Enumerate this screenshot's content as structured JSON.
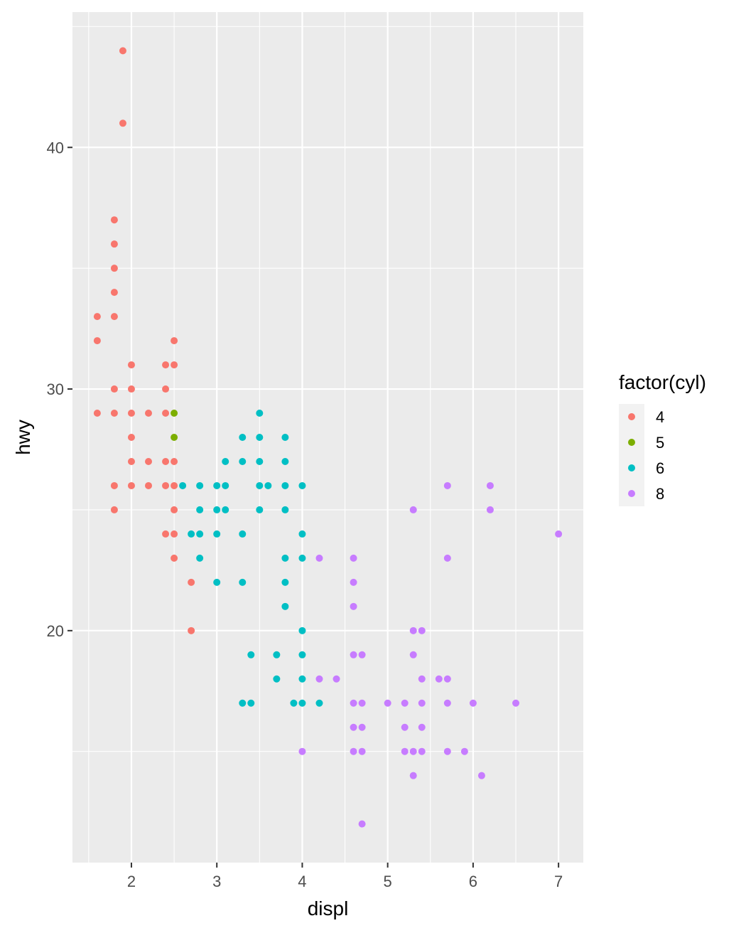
{
  "chart_data": {
    "type": "scatter",
    "xlabel": "displ",
    "ylabel": "hwy",
    "xlim": [
      1.31,
      7.29
    ],
    "ylim": [
      10.4,
      45.6
    ],
    "x_ticks": [
      2,
      3,
      4,
      5,
      6,
      7
    ],
    "y_ticks": [
      20,
      30,
      40
    ],
    "grid": true,
    "legend": {
      "title": "factor(cyl)",
      "position": "right",
      "entries": [
        {
          "label": "4",
          "color": "#F8766D"
        },
        {
          "label": "5",
          "color": "#7CAE00"
        },
        {
          "label": "6",
          "color": "#00BFC4"
        },
        {
          "label": "8",
          "color": "#C77CFF"
        }
      ]
    },
    "series": [
      {
        "name": "4",
        "color": "#F8766D",
        "points": [
          [
            1.9,
            44
          ],
          [
            1.9,
            41
          ],
          [
            1.8,
            37
          ],
          [
            1.8,
            36
          ],
          [
            1.8,
            35
          ],
          [
            1.8,
            34
          ],
          [
            1.8,
            33
          ],
          [
            1.6,
            33
          ],
          [
            1.6,
            32
          ],
          [
            2.5,
            32
          ],
          [
            2.0,
            31
          ],
          [
            2.4,
            31
          ],
          [
            2.5,
            31
          ],
          [
            1.8,
            30
          ],
          [
            2.0,
            30
          ],
          [
            2.4,
            30
          ],
          [
            1.6,
            29
          ],
          [
            1.8,
            29
          ],
          [
            2.0,
            29
          ],
          [
            2.2,
            29
          ],
          [
            2.4,
            29
          ],
          [
            2.0,
            28
          ],
          [
            2.0,
            27
          ],
          [
            2.2,
            27
          ],
          [
            2.4,
            27
          ],
          [
            2.5,
            27
          ],
          [
            1.8,
            26
          ],
          [
            2.0,
            26
          ],
          [
            2.2,
            26
          ],
          [
            2.4,
            26
          ],
          [
            2.5,
            26
          ],
          [
            1.8,
            25
          ],
          [
            2.5,
            25
          ],
          [
            2.4,
            24
          ],
          [
            2.5,
            24
          ],
          [
            2.5,
            23
          ],
          [
            2.7,
            22
          ],
          [
            2.7,
            20
          ]
        ]
      },
      {
        "name": "5",
        "color": "#7CAE00",
        "points": [
          [
            2.5,
            29
          ],
          [
            2.5,
            28
          ]
        ]
      },
      {
        "name": "6",
        "color": "#00BFC4",
        "points": [
          [
            3.5,
            29
          ],
          [
            3.3,
            28
          ],
          [
            3.5,
            28
          ],
          [
            3.8,
            28
          ],
          [
            3.1,
            27
          ],
          [
            3.3,
            27
          ],
          [
            3.5,
            27
          ],
          [
            3.8,
            27
          ],
          [
            2.6,
            26
          ],
          [
            2.8,
            26
          ],
          [
            3.0,
            26
          ],
          [
            3.1,
            26
          ],
          [
            3.5,
            26
          ],
          [
            3.6,
            26
          ],
          [
            3.8,
            26
          ],
          [
            4.0,
            26
          ],
          [
            2.8,
            25
          ],
          [
            3.0,
            25
          ],
          [
            3.1,
            25
          ],
          [
            3.5,
            25
          ],
          [
            3.8,
            25
          ],
          [
            2.7,
            24
          ],
          [
            2.8,
            24
          ],
          [
            3.0,
            24
          ],
          [
            3.3,
            24
          ],
          [
            4.0,
            24
          ],
          [
            2.8,
            23
          ],
          [
            3.8,
            23
          ],
          [
            4.0,
            23
          ],
          [
            3.0,
            22
          ],
          [
            3.3,
            22
          ],
          [
            3.8,
            22
          ],
          [
            3.8,
            21
          ],
          [
            4.0,
            20
          ],
          [
            3.4,
            19
          ],
          [
            3.7,
            19
          ],
          [
            4.0,
            19
          ],
          [
            3.7,
            18
          ],
          [
            4.0,
            18
          ],
          [
            3.3,
            17
          ],
          [
            3.4,
            17
          ],
          [
            3.9,
            17
          ],
          [
            4.0,
            17
          ],
          [
            4.2,
            17
          ]
        ]
      },
      {
        "name": "8",
        "color": "#C77CFF",
        "points": [
          [
            5.7,
            26
          ],
          [
            6.2,
            26
          ],
          [
            5.3,
            25
          ],
          [
            6.2,
            25
          ],
          [
            7.0,
            24
          ],
          [
            4.2,
            23
          ],
          [
            4.6,
            23
          ],
          [
            5.7,
            23
          ],
          [
            4.6,
            22
          ],
          [
            4.6,
            21
          ],
          [
            5.3,
            20
          ],
          [
            5.4,
            20
          ],
          [
            4.6,
            19
          ],
          [
            4.7,
            19
          ],
          [
            5.3,
            19
          ],
          [
            4.2,
            18
          ],
          [
            4.4,
            18
          ],
          [
            5.4,
            18
          ],
          [
            5.6,
            18
          ],
          [
            5.7,
            18
          ],
          [
            4.6,
            17
          ],
          [
            4.7,
            17
          ],
          [
            5.0,
            17
          ],
          [
            5.2,
            17
          ],
          [
            5.4,
            17
          ],
          [
            5.7,
            17
          ],
          [
            6.0,
            17
          ],
          [
            6.5,
            17
          ],
          [
            4.6,
            16
          ],
          [
            4.7,
            16
          ],
          [
            5.2,
            16
          ],
          [
            5.4,
            16
          ],
          [
            4.0,
            15
          ],
          [
            4.6,
            15
          ],
          [
            4.7,
            15
          ],
          [
            5.2,
            15
          ],
          [
            5.3,
            15
          ],
          [
            5.4,
            15
          ],
          [
            5.7,
            15
          ],
          [
            5.9,
            15
          ],
          [
            5.3,
            14
          ],
          [
            6.1,
            14
          ],
          [
            4.7,
            12
          ]
        ]
      }
    ]
  }
}
